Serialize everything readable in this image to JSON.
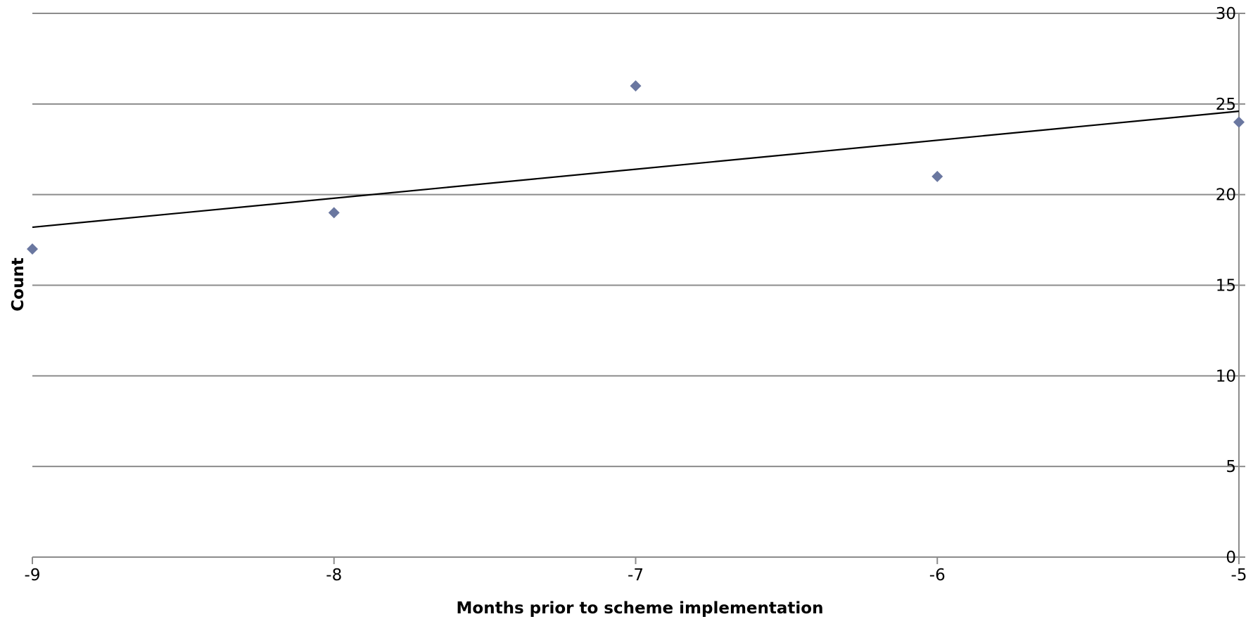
{
  "chart_data": {
    "type": "scatter",
    "title": "",
    "xlabel": "Months prior to scheme implementation",
    "ylabel": "Count",
    "xlim": [
      -9,
      -5
    ],
    "ylim": [
      0,
      30
    ],
    "x_ticks": [
      -9,
      -8,
      -7,
      -6,
      -5
    ],
    "y_ticks": [
      0,
      5,
      10,
      15,
      20,
      25,
      30
    ],
    "x_tick_labels": [
      "-9",
      "-8",
      "-7",
      "-6",
      "-5"
    ],
    "y_tick_labels": [
      "0",
      "5",
      "10",
      "15",
      "20",
      "25",
      "30"
    ],
    "grid": "horizontal",
    "y_axis_side": "right",
    "legend": "none",
    "series": [
      {
        "x": [
          -9,
          -8,
          -7,
          -6,
          -5
        ],
        "y": [
          17,
          19,
          26,
          21,
          24
        ],
        "marker": "diamond",
        "color": "#6a77a0"
      }
    ],
    "trendline": {
      "type": "linear",
      "x": [
        -9,
        -5
      ],
      "y": [
        18.2,
        24.6
      ],
      "color": "#000000"
    }
  }
}
